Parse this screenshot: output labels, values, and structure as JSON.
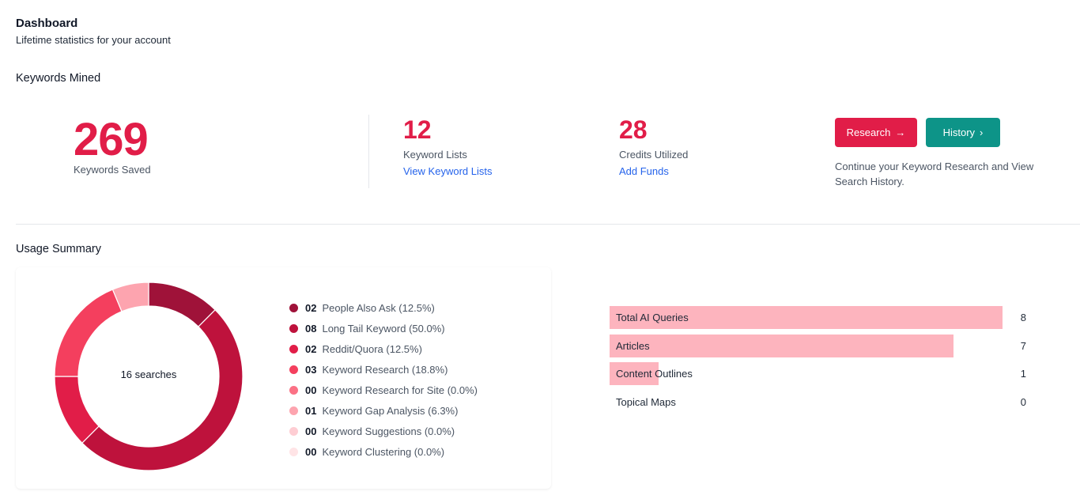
{
  "header": {
    "title": "Dashboard",
    "subtitle": "Lifetime statistics for your account"
  },
  "keywords_mined": {
    "section_title": "Keywords Mined",
    "saved_count": "269",
    "saved_label": "Keywords Saved",
    "lists_count": "12",
    "lists_label": "Keyword Lists",
    "lists_link": "View Keyword Lists",
    "credits_count": "28",
    "credits_label": "Credits Utilized",
    "credits_link": "Add Funds",
    "research_button": "Research",
    "research_icon": "arrow-right-icon",
    "history_button": "History",
    "history_icon": "chevron-right-icon",
    "cta_text": "Continue your Keyword Research and View Search History."
  },
  "usage_summary": {
    "section_title": "Usage Summary",
    "total_label": "16 searches",
    "legend": [
      {
        "count": "02",
        "label": "People Also Ask (12.5%)",
        "value": 2,
        "color": "#9f1239"
      },
      {
        "count": "08",
        "label": "Long Tail Keyword (50.0%)",
        "value": 8,
        "color": "#be123c"
      },
      {
        "count": "02",
        "label": "Reddit/Quora (12.5%)",
        "value": 2,
        "color": "#e11d48"
      },
      {
        "count": "03",
        "label": "Keyword Research (18.8%)",
        "value": 3,
        "color": "#f43f5e"
      },
      {
        "count": "00",
        "label": "Keyword Research for Site (0.0%)",
        "value": 0,
        "color": "#fb7185"
      },
      {
        "count": "01",
        "label": "Keyword Gap Analysis (6.3%)",
        "value": 1,
        "color": "#fda4af"
      },
      {
        "count": "00",
        "label": "Keyword Suggestions (0.0%)",
        "value": 0,
        "color": "#fecdd3"
      },
      {
        "count": "00",
        "label": "Keyword Clustering (0.0%)",
        "value": 0,
        "color": "#ffe4e6"
      }
    ],
    "bars": [
      {
        "label": "Total AI Queries",
        "value": 8
      },
      {
        "label": "Articles",
        "value": 7
      },
      {
        "label": "Content Outlines",
        "value": 1
      },
      {
        "label": "Topical Maps",
        "value": 0
      }
    ],
    "bar_max": 8,
    "bar_color": "#fdb4be"
  }
}
